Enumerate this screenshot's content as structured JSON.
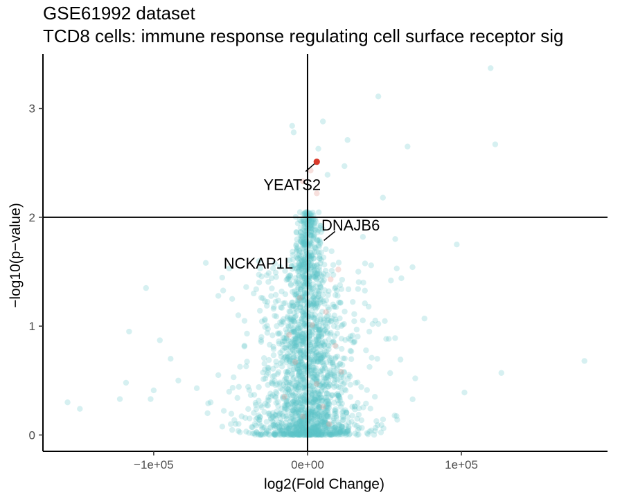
{
  "chart_data": {
    "type": "scatter",
    "title": "GSE61992 dataset",
    "subtitle": "TCD8 cells: immune response regulating cell surface receptor sig",
    "xlabel": "log2(Fold Change)",
    "ylabel": "−log10(p−value)",
    "xlim": [
      -172000,
      195000
    ],
    "ylim": [
      -0.15,
      3.5
    ],
    "xticks": [
      {
        "value": -100000,
        "label": "−1e+05"
      },
      {
        "value": 0,
        "label": "0e+00"
      },
      {
        "value": 100000,
        "label": "1e+05"
      }
    ],
    "yticks": [
      {
        "value": 0,
        "label": "0"
      },
      {
        "value": 1,
        "label": "1"
      },
      {
        "value": 2,
        "label": "2"
      },
      {
        "value": 3,
        "label": "3"
      }
    ],
    "threshold_lines": {
      "x": 0,
      "y": 2
    },
    "grid": false,
    "legend": "none",
    "colors": {
      "background_points": "#5bc4c6",
      "background_points_opacity": 0.25,
      "highlight_gene_set": "#e6968a",
      "significant_highlight": "#d93a2b",
      "axis": "#000000"
    },
    "highlighted_genes": [
      {
        "gene": "YEATS2",
        "x": 6000,
        "y": 2.51,
        "label_x": -10000,
        "label_y": 2.3
      },
      {
        "gene": "DNAJB6",
        "x": 12000,
        "y": 1.8,
        "label_x": 28000,
        "label_y": 1.93
      },
      {
        "gene": "NCKAP1L",
        "x": -17000,
        "y": 1.53,
        "label_x": -32000,
        "label_y": 1.58
      }
    ],
    "points": [
      {
        "x": 119000,
        "y": 3.37
      },
      {
        "x": 46000,
        "y": 3.11
      },
      {
        "x": 122000,
        "y": 2.67
      },
      {
        "x": 65000,
        "y": 2.65
      },
      {
        "x": -10000,
        "y": 2.84
      },
      {
        "x": 10000,
        "y": 2.88
      },
      {
        "x": 26000,
        "y": 2.71
      },
      {
        "x": 7000,
        "y": 2.63
      },
      {
        "x": -9000,
        "y": 2.78
      },
      {
        "x": 24000,
        "y": 2.47
      },
      {
        "x": 13000,
        "y": 2.39
      },
      {
        "x": 49000,
        "y": 2.18
      },
      {
        "x": 97000,
        "y": 1.75
      },
      {
        "x": 57000,
        "y": 1.8
      },
      {
        "x": 58000,
        "y": 1.53
      },
      {
        "x": 61000,
        "y": 1.44
      },
      {
        "x": 76000,
        "y": 1.07
      },
      {
        "x": 46000,
        "y": 1.02
      },
      {
        "x": 180000,
        "y": 0.68
      },
      {
        "x": 126000,
        "y": 0.57
      },
      {
        "x": 102000,
        "y": 0.39
      },
      {
        "x": 70000,
        "y": 0.52
      },
      {
        "x": 36000,
        "y": 1.82
      },
      {
        "x": 33000,
        "y": 1.5
      },
      {
        "x": -105000,
        "y": 1.35
      },
      {
        "x": -116000,
        "y": 0.95
      },
      {
        "x": -96000,
        "y": 0.87
      },
      {
        "x": -89000,
        "y": 0.7
      },
      {
        "x": -84000,
        "y": 0.5
      },
      {
        "x": -118000,
        "y": 0.48
      },
      {
        "x": -100000,
        "y": 0.41
      },
      {
        "x": -122000,
        "y": 0.33
      },
      {
        "x": -156000,
        "y": 0.3
      },
      {
        "x": -148000,
        "y": 0.24
      },
      {
        "x": -102000,
        "y": 0.33
      },
      {
        "x": -72000,
        "y": 0.43
      },
      {
        "x": -51000,
        "y": 1.53
      },
      {
        "x": -49000,
        "y": 1.25
      },
      {
        "x": -45000,
        "y": 1.1
      },
      {
        "x": -41000,
        "y": 0.82
      },
      {
        "x": -63000,
        "y": 0.3
      },
      {
        "x": -65000,
        "y": 0.2
      },
      {
        "x": -58000,
        "y": 0.55
      },
      {
        "x": -35000,
        "y": 1.3
      },
      {
        "x": -30000,
        "y": 0.9
      }
    ],
    "highlight_points": [
      {
        "x": 2000,
        "y": 2.43
      },
      {
        "x": -3000,
        "y": 2.33
      },
      {
        "x": 6000,
        "y": 2.22
      },
      {
        "x": 20000,
        "y": 1.52
      },
      {
        "x": 15000,
        "y": 1.43
      },
      {
        "x": -5000,
        "y": 1.26
      },
      {
        "x": 12000,
        "y": 1.13
      },
      {
        "x": 3000,
        "y": 1.01
      },
      {
        "x": -12000,
        "y": 0.92
      },
      {
        "x": 18000,
        "y": 0.82
      },
      {
        "x": -8000,
        "y": 0.67
      },
      {
        "x": 22000,
        "y": 0.58
      },
      {
        "x": 6000,
        "y": 0.47
      },
      {
        "x": -15000,
        "y": 0.35
      },
      {
        "x": 10000,
        "y": 0.26
      },
      {
        "x": -3000,
        "y": 0.17
      },
      {
        "x": 14000,
        "y": 0.1
      }
    ]
  }
}
